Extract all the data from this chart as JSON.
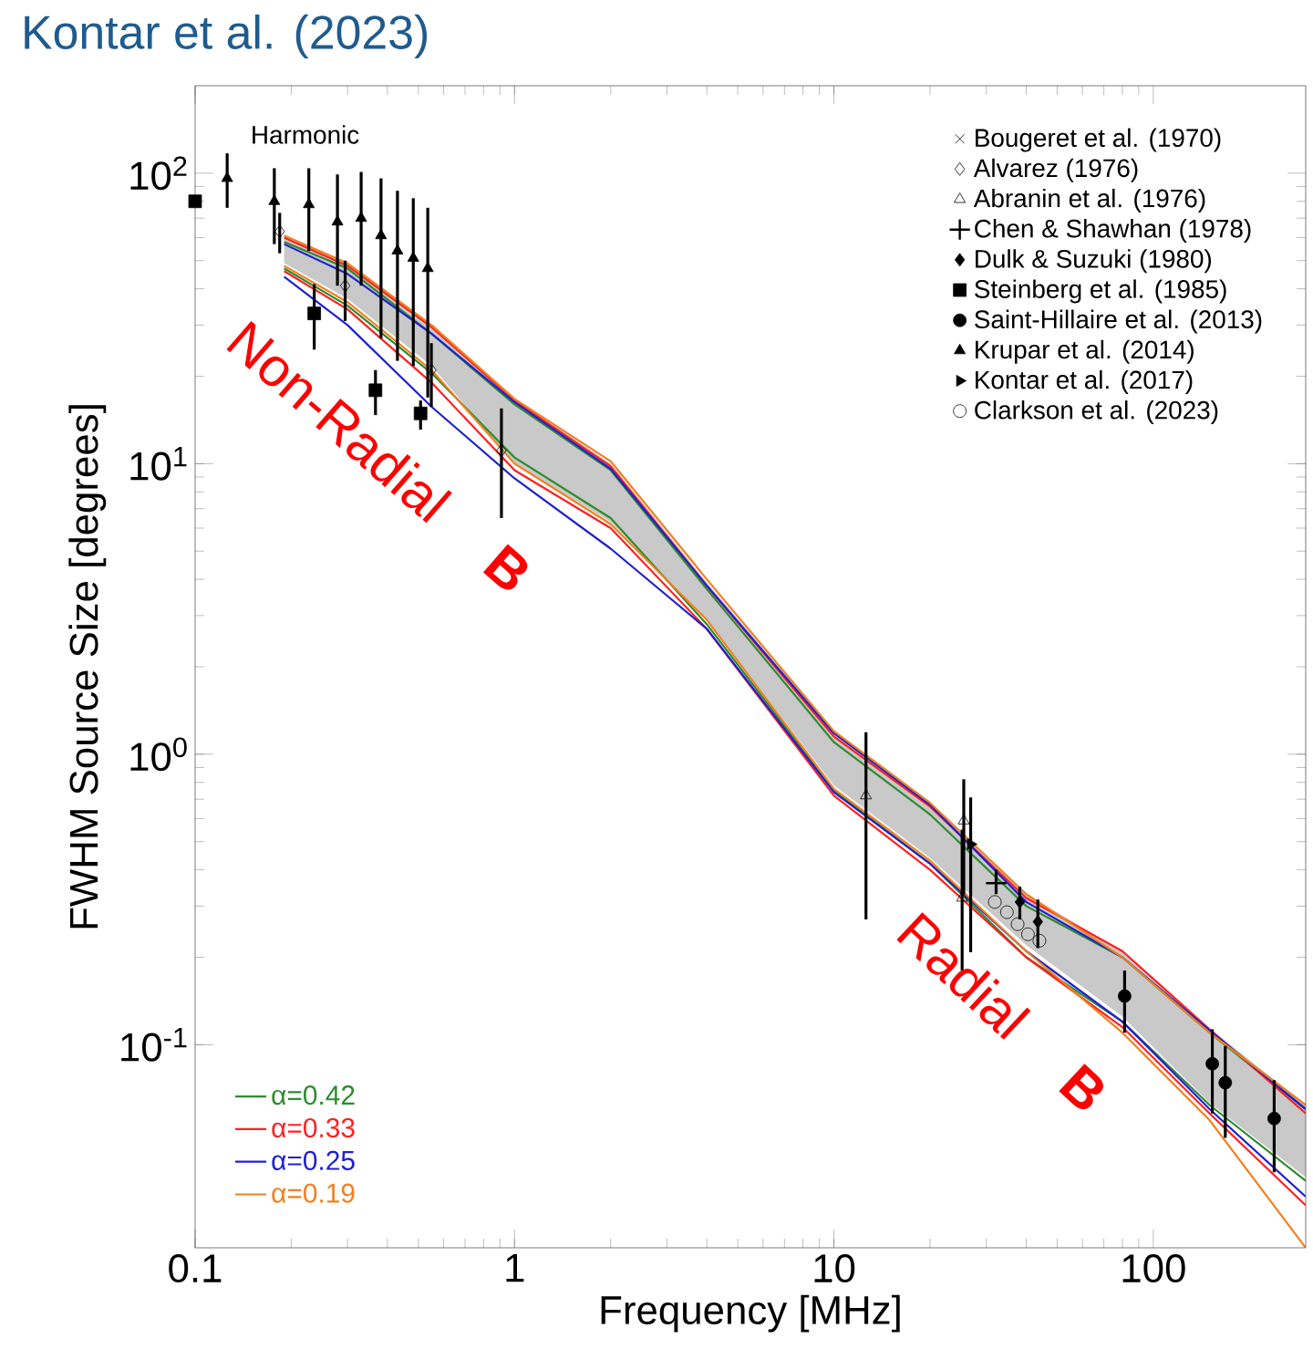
{
  "chart_data": {
    "type": "scatter",
    "title": "Kontar et al. (2023)",
    "xlabel": "Frequency [MHz]",
    "ylabel": "FWHM Source Size [degrees]",
    "log": "xy",
    "legend": "top right",
    "xlim": [
      0.1,
      300
    ],
    "xticks": [
      0.1,
      1,
      10,
      100
    ],
    "ylim": [
      0.02,
      200
    ],
    "yticks": [
      {
        "value": 0.1,
        "label": "10$^{-1}$"
      },
      {
        "value": 1,
        "label": "10$^{0}$"
      },
      {
        "value": 10,
        "label": "10$^{1}$"
      },
      {
        "value": 100,
        "label": "10$^{2}$"
      }
    ],
    "annotations": [
      "Harmonic",
      "Non-Radial **B**",
      "Radial **B**"
    ],
    "series": [
      {
        "type": "line",
        "name": "α=0.42",
        "color": "#2e8b2e",
        "x": [
          0.19,
          0.3,
          0.55,
          1,
          2,
          4,
          10,
          20,
          40,
          80,
          150,
          300
        ],
        "values": [
          58,
          47,
          28,
          16,
          9.5,
          3.7,
          1.1,
          0.62,
          0.3,
          0.2,
          0.11,
          0.06
        ]
      },
      {
        "type": "line",
        "name": "α=0.33",
        "color": "#ff2020",
        "x": [
          0.19,
          0.3,
          0.55,
          1,
          2,
          4,
          10,
          20,
          40,
          80,
          150,
          300
        ],
        "values": [
          60,
          48,
          29.5,
          16.5,
          9.8,
          3.8,
          1.15,
          0.66,
          0.32,
          0.21,
          0.113,
          0.058
        ]
      },
      {
        "type": "line",
        "name": "α=0.25",
        "color": "#2020d0",
        "x": [
          0.19,
          0.3,
          0.55,
          1,
          2,
          4,
          10,
          20,
          40,
          80,
          150,
          300
        ],
        "values": [
          57,
          45,
          28,
          16.3,
          9.6,
          3.8,
          1.18,
          0.67,
          0.31,
          0.2,
          0.112,
          0.06
        ]
      },
      {
        "type": "line",
        "name": "α=0.19",
        "color": "#f08020",
        "x": [
          0.19,
          0.3,
          0.55,
          1,
          2,
          4,
          10,
          20,
          40,
          80,
          150,
          300
        ],
        "values": [
          61,
          49,
          30,
          16.7,
          10.2,
          4,
          1.2,
          0.68,
          0.33,
          0.2,
          0.11,
          0.062
        ],
        "lower": [
          49,
          37,
          21.7,
          10,
          6.3,
          2.9,
          0.78,
          0.44,
          0.22,
          0.125,
          0.063,
          0.035
        ],
        "upper": [
          61,
          49,
          30,
          16.7,
          10,
          3.9,
          1.2,
          0.68,
          0.33,
          0.21,
          0.114,
          0.062
        ]
      },
      {
        "type": "line",
        "color": "#2e8b2e",
        "x": [
          0.19,
          0.3,
          0.55,
          1,
          2,
          4,
          10,
          20,
          40,
          80,
          150,
          300
        ],
        "values": [
          47,
          35,
          20.5,
          10.5,
          6.5,
          2.8,
          0.75,
          0.42,
          0.2,
          0.12,
          0.062,
          0.034
        ]
      },
      {
        "type": "line",
        "color": "#ff2020",
        "x": [
          0.19,
          0.3,
          0.55,
          1,
          2,
          4,
          10,
          20,
          40,
          80,
          150,
          300
        ],
        "values": [
          46,
          34,
          19,
          9.5,
          6,
          2.7,
          0.72,
          0.4,
          0.2,
          0.115,
          0.058,
          0.028
        ]
      },
      {
        "type": "line",
        "color": "#2020d0",
        "x": [
          0.19,
          0.3,
          0.55,
          1,
          2,
          4,
          10,
          20,
          40,
          80,
          150,
          300
        ],
        "values": [
          44,
          30,
          15.7,
          8.9,
          5.1,
          2.7,
          0.74,
          0.42,
          0.21,
          0.12,
          0.06,
          0.03
        ]
      },
      {
        "type": "line",
        "color": "#f08020",
        "x": [
          0.19,
          0.3,
          0.55,
          1,
          2,
          4,
          10,
          20,
          40,
          80,
          150,
          300
        ],
        "values": [
          48,
          36,
          21,
          10,
          6.2,
          2.9,
          0.76,
          0.43,
          0.21,
          0.11,
          0.055,
          0.02
        ]
      },
      {
        "name": "Bougeret et al. (1970)",
        "color": "#000000",
        "marker": "cross"
      },
      {
        "name": "Alvarez (1976)",
        "color": "#000000",
        "marker": "diamond",
        "x": [
          0.184,
          0.295,
          0.549,
          0.91
        ],
        "values": [
          63,
          41,
          21,
          11.1
        ],
        "errors": [
          [
            53,
            73
          ],
          [
            31,
            50
          ],
          [
            15.7,
            26
          ],
          [
            6.5,
            15.5
          ]
        ]
      },
      {
        "name": "Abranin et al. (1976)",
        "color": "#000000",
        "marker": "triangle",
        "x": [
          12.6,
          25.5,
          25.2
        ],
        "values": [
          0.72,
          0.59,
          0.32
        ],
        "errors": [
          [
            0.27,
            1.19
          ],
          [
            0.33,
            0.82
          ],
          [
            0.18,
            0.55
          ]
        ]
      },
      {
        "name": "Chen & Shawhan (1978)",
        "color": "#000000",
        "marker": "plus",
        "x": [
          32.2
        ],
        "values": [
          0.36
        ],
        "errors": [
          [
            0.33,
            0.4
          ]
        ]
      },
      {
        "name": "Dulk & Suzuki (1980)",
        "color": "#000000",
        "marker": "diamond-filled",
        "x": [
          38.2,
          43.5
        ],
        "values": [
          0.31,
          0.265
        ],
        "errors": [
          [
            0.27,
            0.35
          ],
          [
            0.215,
            0.316
          ]
        ]
      },
      {
        "name": "Steinberg et al. (1985)",
        "color": "#000000",
        "marker": "square-filled",
        "x": [
          0.1,
          0.236,
          0.367,
          0.508
        ],
        "values": [
          80,
          32.9,
          17.9,
          14.9
        ],
        "errors": [
          null,
          [
            24.7,
            41.5
          ],
          [
            14.7,
            21
          ],
          [
            13.1,
            16.5
          ]
        ]
      },
      {
        "name": "Saint-Hillaire et al. (2013)",
        "color": "#000000",
        "marker": "circle-filled",
        "x": [
          81.3,
          153,
          168,
          239
        ],
        "values": [
          0.147,
          0.086,
          0.074,
          0.0557
        ],
        "errors": [
          [
            0.11,
            0.18
          ],
          [
            0.058,
            0.113
          ],
          [
            0.0478,
            0.099
          ],
          [
            0.0364,
            0.0755
          ]
        ]
      },
      {
        "name": "Krupar et al. (2014)",
        "color": "#000000",
        "marker": "triangle-filled",
        "x": [
          0.126,
          0.177,
          0.227,
          0.279,
          0.331,
          0.382,
          0.43,
          0.482,
          0.535
        ],
        "values": [
          96,
          80,
          78,
          68,
          70,
          61,
          54,
          51,
          47
        ],
        "errors": [
          [
            76,
            117
          ],
          [
            57,
            104
          ],
          [
            54,
            104
          ],
          [
            41,
            99
          ],
          [
            41,
            101
          ],
          [
            27,
            96
          ],
          [
            22.6,
            87
          ],
          [
            21.7,
            82
          ],
          [
            16.9,
            76
          ]
        ]
      },
      {
        "name": "Kontar et al. (2017)",
        "color": "#000000",
        "marker": "triangle-right-filled",
        "x": [
          26.8
        ],
        "values": [
          0.49
        ],
        "errors": [
          [
            0.208,
            0.71
          ]
        ]
      },
      {
        "name": "Clarkson et al. (2023)",
        "color": "#000000",
        "marker": "circle",
        "x": [
          31.9,
          34.8,
          37.6,
          40.5,
          44
        ],
        "values": [
          0.31,
          0.286,
          0.26,
          0.24,
          0.228
        ]
      }
    ]
  }
}
